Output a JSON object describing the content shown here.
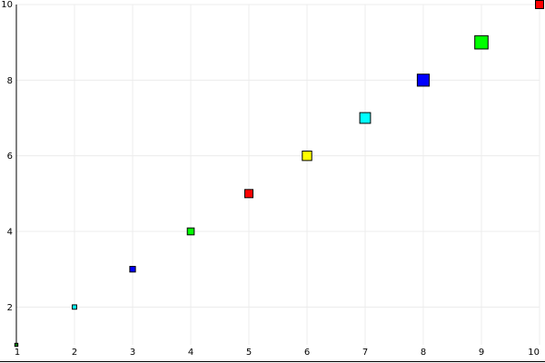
{
  "chart_data": {
    "type": "scatter",
    "title": "",
    "xlabel": "",
    "ylabel": "",
    "xlim": [
      1,
      10
    ],
    "ylim": [
      1,
      10
    ],
    "grid": true,
    "legend": "none",
    "marker": "square",
    "x_ticks": [
      1,
      2,
      3,
      4,
      5,
      6,
      7,
      8,
      9,
      10
    ],
    "y_ticks": [
      2,
      4,
      6,
      8,
      10
    ],
    "points": [
      {
        "x": 1,
        "y": 1,
        "size": 1,
        "color": "#008000"
      },
      {
        "x": 2,
        "y": 2,
        "size": 2,
        "color": "#00ffff"
      },
      {
        "x": 3,
        "y": 3,
        "size": 3,
        "color": "#0000ff"
      },
      {
        "x": 4,
        "y": 4,
        "size": 4,
        "color": "#00ff00"
      },
      {
        "x": 5,
        "y": 5,
        "size": 5,
        "color": "#ff0000"
      },
      {
        "x": 6,
        "y": 6,
        "size": 6,
        "color": "#ffff00"
      },
      {
        "x": 7,
        "y": 7,
        "size": 7,
        "color": "#00ffff"
      },
      {
        "x": 8,
        "y": 8,
        "size": 8,
        "color": "#0000ff"
      },
      {
        "x": 9,
        "y": 9,
        "size": 9,
        "color": "#00ff00"
      },
      {
        "x": 10,
        "y": 10,
        "size": 5,
        "color": "#ff0000"
      }
    ]
  }
}
